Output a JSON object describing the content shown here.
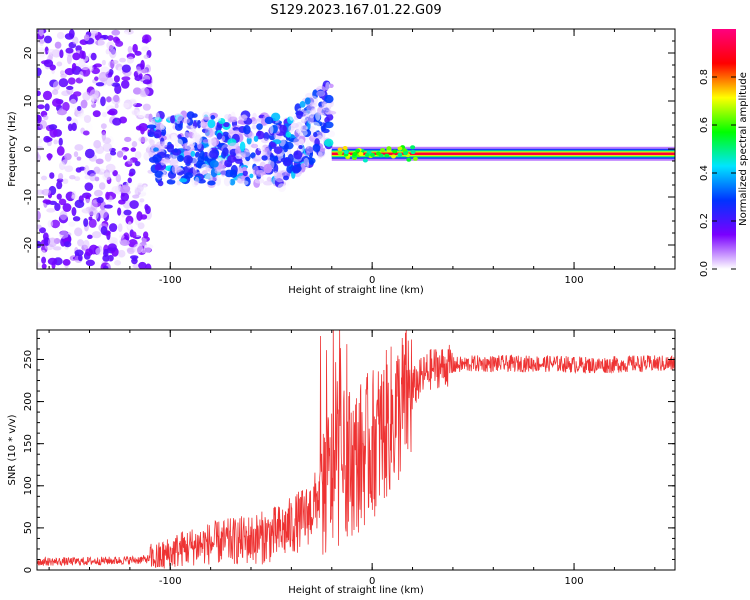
{
  "title": "S129.2023.167.01.22.G09",
  "chart_data": [
    {
      "type": "heatmap",
      "xlabel": "Height of straight line (km)",
      "ylabel": "Frequency (Hz)",
      "xlim": [
        -166,
        150
      ],
      "ylim": [
        -25,
        25
      ],
      "x_ticks": [
        -100,
        0,
        100
      ],
      "y_ticks": [
        -20,
        -10,
        0,
        10,
        20
      ],
      "grid": false,
      "colorbar": {
        "label": "Normalized spectral amplitude",
        "range": [
          0,
          1
        ],
        "ticks": [
          "0.0",
          "0.2",
          "0.4",
          "0.6",
          "0.8"
        ],
        "tick_values": [
          0.0,
          0.2,
          0.4,
          0.6,
          0.8
        ],
        "colors": [
          "#ffffff",
          "#7a00ff",
          "#0033ff",
          "#00e5ff",
          "#00ff00",
          "#ffff00",
          "#ff0000",
          "#ff007f"
        ]
      },
      "regions": [
        {
          "x_range": [
            -166,
            -110
          ],
          "freq_range": [
            -25,
            25
          ],
          "amplitude": 0.1
        },
        {
          "x_range": [
            -110,
            -20
          ],
          "freq_range": [
            -8,
            8
          ],
          "amplitude": 0.25
        },
        {
          "x_range": [
            -20,
            150
          ],
          "freq_range": [
            -2,
            2
          ],
          "amplitude": 0.9
        }
      ]
    },
    {
      "type": "line",
      "xlabel": "Height of straight line (km)",
      "ylabel": "SNR (10 * v/v)",
      "xlim": [
        -166,
        150
      ],
      "ylim": [
        0,
        285
      ],
      "x_ticks": [
        -100,
        0,
        100
      ],
      "y_ticks": [
        0,
        50,
        100,
        150,
        200,
        250
      ],
      "grid": false,
      "series": [
        {
          "color": "#ee3333",
          "x": [
            -166,
            -150,
            -130,
            -115,
            -105,
            -95,
            -85,
            -75,
            -65,
            -55,
            -45,
            -38,
            -32,
            -28,
            -24,
            -20,
            -16,
            -12,
            -8,
            -4,
            0,
            4,
            8,
            12,
            16,
            20,
            25,
            30,
            40,
            50,
            70,
            90,
            110,
            130,
            150
          ],
          "y": [
            10,
            10,
            11,
            12,
            15,
            25,
            30,
            33,
            35,
            38,
            45,
            55,
            65,
            80,
            100,
            110,
            120,
            130,
            130,
            140,
            150,
            160,
            175,
            185,
            200,
            215,
            230,
            240,
            243,
            245,
            245,
            245,
            243,
            245,
            245
          ]
        }
      ]
    }
  ]
}
